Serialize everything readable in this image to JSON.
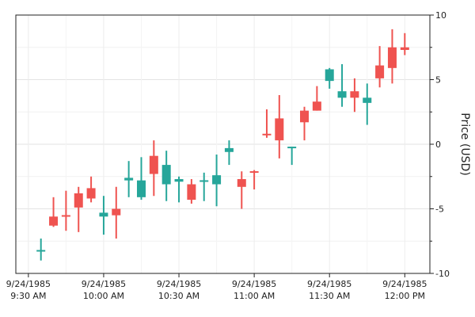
{
  "chart_data": {
    "type": "candlestick",
    "title": "",
    "xlabel": "",
    "ylabel": "Price (USD)",
    "ylim": [
      -10,
      10
    ],
    "y_ticks": [
      -10,
      -5,
      0,
      5,
      10
    ],
    "x_tick_labels": [
      {
        "time": "9:30 AM",
        "date": "9/24/1985",
        "line1": "9/24/1985",
        "line2": "9:30 AM"
      },
      {
        "time": "10:00 AM",
        "date": "9/24/1985",
        "line1": "9/24/1985",
        "line2": "10:00 AM"
      },
      {
        "time": "10:30 AM",
        "date": "9/24/1985",
        "line1": "9/24/1985",
        "line2": "10:30 AM"
      },
      {
        "time": "11:00 AM",
        "date": "9/24/1985",
        "line1": "9/24/1985",
        "line2": "11:00 AM"
      },
      {
        "time": "11:30 AM",
        "date": "9/24/1985",
        "line1": "9/24/1985",
        "line2": "11:30 AM"
      },
      {
        "time": "12:00 PM",
        "date": "9/24/1985",
        "line1": "9/24/1985",
        "line2": "12:00 PM"
      }
    ],
    "up_color": "#26a69a",
    "down_color": "#ef5350",
    "grid": true,
    "y_axis_side": "right",
    "candles": [
      {
        "time": "9:35 AM",
        "open": -8.3,
        "high": -7.3,
        "low": -9.0,
        "close": -8.2
      },
      {
        "time": "9:40 AM",
        "open": -5.6,
        "high": -4.1,
        "low": -6.4,
        "close": -6.3
      },
      {
        "time": "9:45 AM",
        "open": -5.5,
        "high": -3.6,
        "low": -6.7,
        "close": -5.6
      },
      {
        "time": "9:50 AM",
        "open": -3.8,
        "high": -3.3,
        "low": -6.8,
        "close": -4.9
      },
      {
        "time": "9:55 AM",
        "open": -3.4,
        "high": -2.5,
        "low": -4.5,
        "close": -4.2
      },
      {
        "time": "10:00 AM",
        "open": -5.6,
        "high": -4.0,
        "low": -7.0,
        "close": -5.3
      },
      {
        "time": "10:05 AM",
        "open": -5.0,
        "high": -3.3,
        "low": -7.3,
        "close": -5.5
      },
      {
        "time": "10:10 AM",
        "open": -2.8,
        "high": -1.3,
        "low": -4.1,
        "close": -2.6
      },
      {
        "time": "10:15 AM",
        "open": -4.1,
        "high": -1.0,
        "low": -4.3,
        "close": -2.8
      },
      {
        "time": "10:20 AM",
        "open": -0.9,
        "high": 0.3,
        "low": -4.0,
        "close": -2.3
      },
      {
        "time": "10:25 AM",
        "open": -3.1,
        "high": -0.5,
        "low": -4.4,
        "close": -1.6
      },
      {
        "time": "10:30 AM",
        "open": -2.9,
        "high": -2.5,
        "low": -4.5,
        "close": -2.7
      },
      {
        "time": "10:35 AM",
        "open": -3.1,
        "high": -2.7,
        "low": -4.6,
        "close": -4.3
      },
      {
        "time": "10:40 AM",
        "open": -2.9,
        "high": -2.2,
        "low": -4.4,
        "close": -2.8
      },
      {
        "time": "10:45 AM",
        "open": -3.1,
        "high": -0.8,
        "low": -4.8,
        "close": -2.4
      },
      {
        "time": "10:50 AM",
        "open": -0.6,
        "high": 0.3,
        "low": -1.6,
        "close": -0.3
      },
      {
        "time": "10:55 AM",
        "open": -2.7,
        "high": -2.1,
        "low": -5.0,
        "close": -3.3
      },
      {
        "time": "11:00 AM",
        "open": -2.1,
        "high": -2.0,
        "low": -3.5,
        "close": -2.2
      },
      {
        "time": "11:05 AM",
        "open": 0.8,
        "high": 2.7,
        "low": 0.5,
        "close": 0.7
      },
      {
        "time": "11:10 AM",
        "open": 2.0,
        "high": 3.8,
        "low": -1.1,
        "close": 0.3
      },
      {
        "time": "11:15 AM",
        "open": -0.3,
        "high": -0.2,
        "low": -1.6,
        "close": -0.2
      },
      {
        "time": "11:20 AM",
        "open": 2.6,
        "high": 2.9,
        "low": 0.3,
        "close": 1.7
      },
      {
        "time": "11:25 AM",
        "open": 3.3,
        "high": 4.5,
        "low": 2.6,
        "close": 2.6
      },
      {
        "time": "11:30 AM",
        "open": 4.9,
        "high": 5.9,
        "low": 4.3,
        "close": 5.8
      },
      {
        "time": "11:35 AM",
        "open": 3.6,
        "high": 6.2,
        "low": 2.9,
        "close": 4.1
      },
      {
        "time": "11:40 AM",
        "open": 4.1,
        "high": 5.1,
        "low": 2.5,
        "close": 3.6
      },
      {
        "time": "11:45 AM",
        "open": 3.2,
        "high": 4.7,
        "low": 1.5,
        "close": 3.6
      },
      {
        "time": "11:50 AM",
        "open": 6.1,
        "high": 7.6,
        "low": 4.4,
        "close": 5.1
      },
      {
        "time": "11:55 AM",
        "open": 7.5,
        "high": 8.9,
        "low": 4.7,
        "close": 5.9
      },
      {
        "time": "12:00 PM",
        "open": 7.5,
        "high": 8.6,
        "low": 6.9,
        "close": 7.3
      }
    ]
  }
}
